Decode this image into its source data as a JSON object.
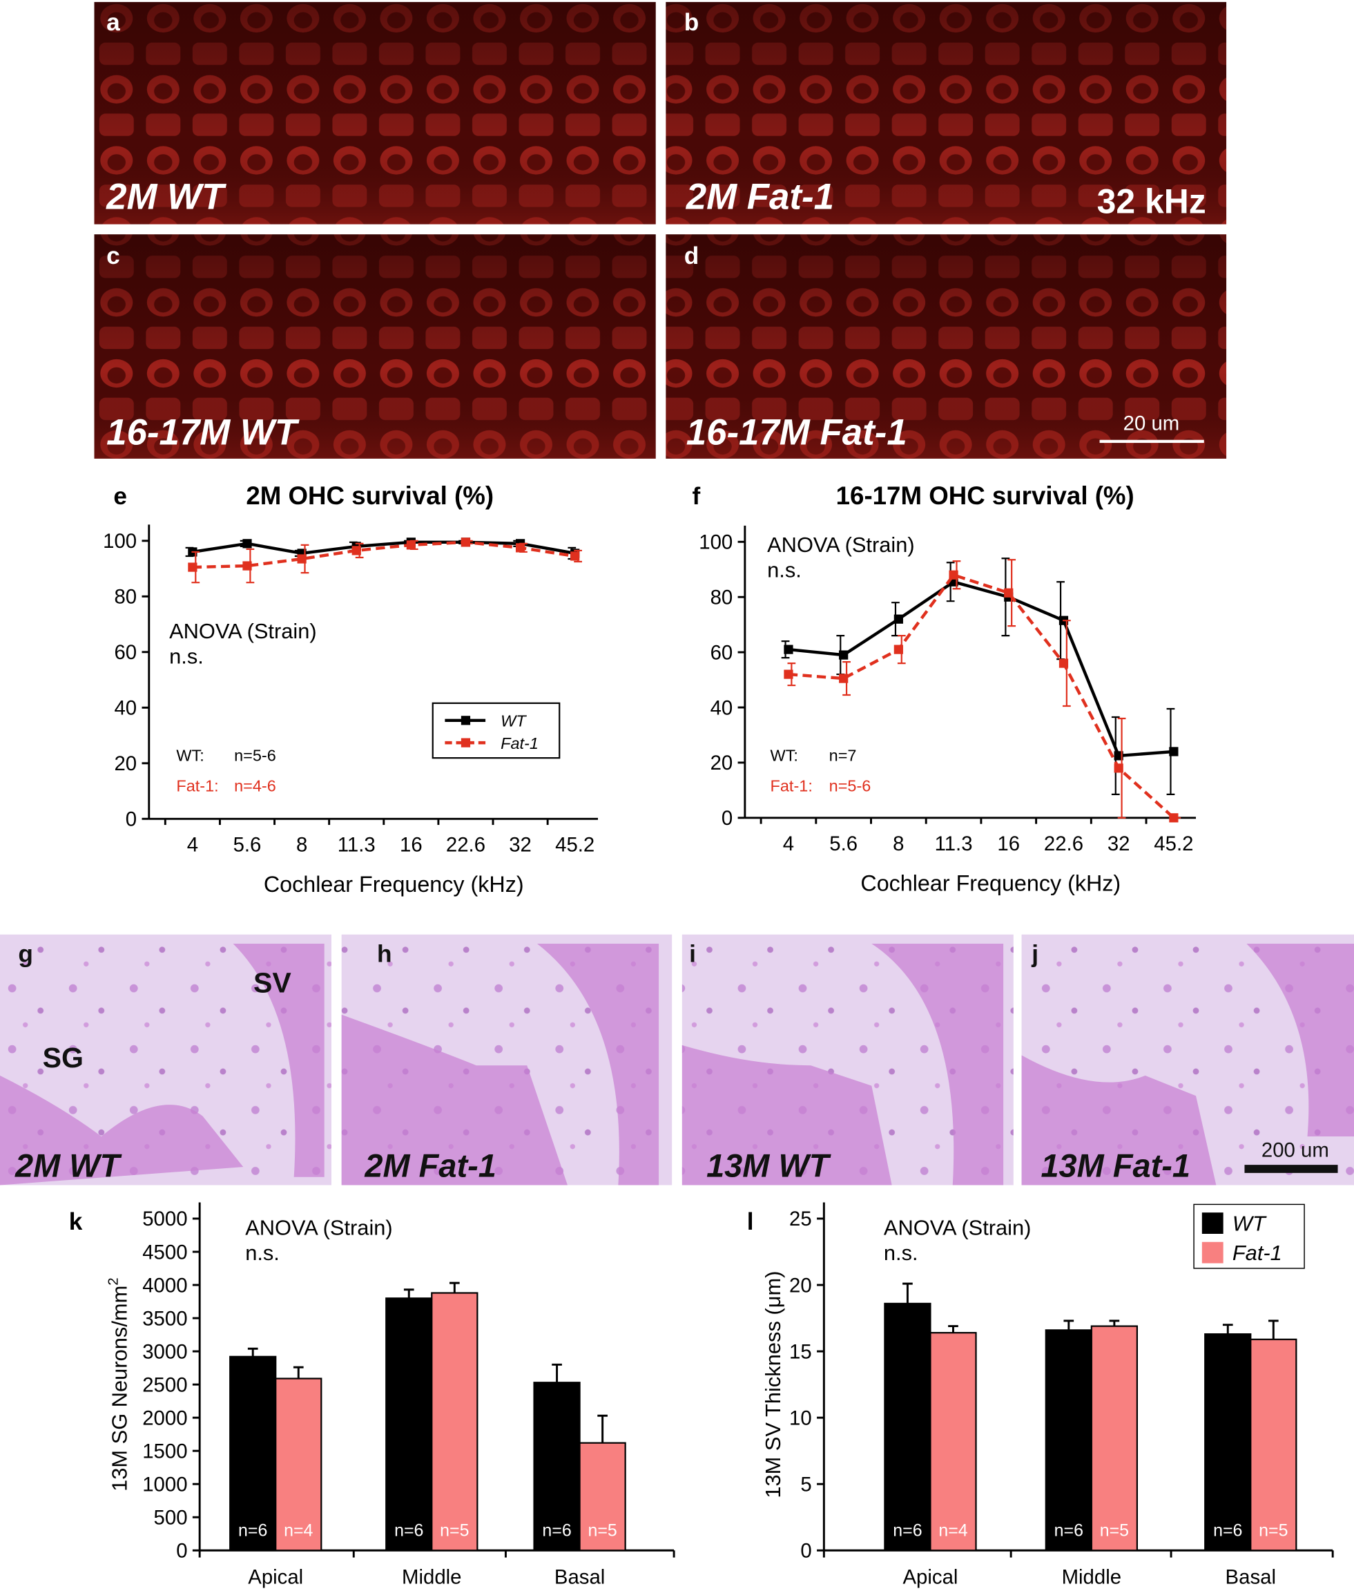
{
  "images": [
    {
      "letter": "a",
      "label": "2M WT"
    },
    {
      "letter": "b",
      "label": "2M Fat-1",
      "annotation": "32 kHz"
    },
    {
      "letter": "c",
      "label": "16-17M WT"
    },
    {
      "letter": "d",
      "label": "16-17M Fat-1",
      "scale_bar": "20 um"
    },
    {
      "letter": "g",
      "label": "2M WT",
      "annotations": [
        "SG",
        "SV"
      ]
    },
    {
      "letter": "h",
      "label": "2M Fat-1"
    },
    {
      "letter": "i",
      "label": "13M WT"
    },
    {
      "letter": "j",
      "label": "13M Fat-1",
      "scale_bar": "200 um"
    }
  ],
  "chart_data": [
    {
      "type": "line",
      "panel_letter": "e",
      "title": "2M OHC survival (%)",
      "x_label": "Cochlear Frequency (kHz)",
      "categories": [
        "4",
        "5.6",
        "8",
        "11.3",
        "16",
        "22.6",
        "32",
        "45.2"
      ],
      "ylim": [
        0,
        100
      ],
      "yticks": [
        0,
        20,
        40,
        60,
        80,
        100
      ],
      "annotation": [
        "ANOVA (Strain)",
        "n.s."
      ],
      "n_counts": [
        {
          "label": "WT:",
          "n": "n=5-6"
        },
        {
          "label": "Fat-1:",
          "n": "n=4-6"
        }
      ],
      "legend": true,
      "series": [
        {
          "name": "WT",
          "color": "#000000",
          "dashed": false,
          "values": [
            96,
            99,
            95.5,
            98,
            99.5,
            99.5,
            99,
            95.5
          ],
          "errors": [
            1.5,
            1,
            1,
            1.5,
            0.5,
            0.5,
            1,
            2
          ]
        },
        {
          "name": "Fat-1",
          "color": "#e0301e",
          "dashed": true,
          "values": [
            90.5,
            91,
            93.5,
            96.5,
            98.5,
            99.5,
            97.5,
            94.5
          ],
          "errors": [
            5.5,
            6,
            5,
            2.5,
            1.5,
            0.5,
            1.5,
            2
          ]
        }
      ]
    },
    {
      "type": "line",
      "panel_letter": "f",
      "title": "16-17M OHC survival (%)",
      "x_label": "Cochlear Frequency (kHz)",
      "categories": [
        "4",
        "5.6",
        "8",
        "11.3",
        "16",
        "22.6",
        "32",
        "45.2"
      ],
      "ylim": [
        0,
        100
      ],
      "yticks": [
        0,
        20,
        40,
        60,
        80,
        100
      ],
      "annotation": [
        "ANOVA (Strain)",
        "n.s."
      ],
      "n_counts": [
        {
          "label": "WT:",
          "n": "n=7"
        },
        {
          "label": "Fat-1:",
          "n": "n=5-6"
        }
      ],
      "legend": false,
      "series": [
        {
          "name": "WT",
          "color": "#000000",
          "dashed": false,
          "values": [
            61,
            59,
            72,
            85.5,
            80,
            71.5,
            22.5,
            24
          ],
          "errors": [
            3,
            7,
            6,
            7,
            14,
            14,
            14,
            15.5
          ]
        },
        {
          "name": "Fat-1",
          "color": "#e0301e",
          "dashed": true,
          "values": [
            52,
            50.5,
            61,
            88,
            81.5,
            56,
            18,
            0
          ],
          "errors": [
            4,
            6,
            5,
            5,
            12,
            15.5,
            18,
            0
          ]
        }
      ]
    },
    {
      "type": "bar",
      "panel_letter": "k",
      "y_label": "13M SG Neurons/mm",
      "y_label_sup": "2",
      "categories": [
        "Apical",
        "Middle",
        "Basal"
      ],
      "ylim": [
        0,
        5000
      ],
      "yticks": [
        0,
        500,
        1000,
        1500,
        2000,
        2500,
        3000,
        3500,
        4000,
        4500,
        5000
      ],
      "annotation": [
        "ANOVA (Strain)",
        "n.s."
      ],
      "legend": false,
      "series": [
        {
          "name": "WT",
          "color": "#000000",
          "values": [
            2920,
            3800,
            2530
          ],
          "errors": [
            120,
            130,
            270
          ],
          "n_labels": [
            "n=6",
            "n=6",
            "n=6"
          ]
        },
        {
          "name": "Fat-1",
          "color": "#f88080",
          "values": [
            2590,
            3880,
            1620
          ],
          "errors": [
            170,
            150,
            410
          ],
          "n_labels": [
            "n=4",
            "n=5",
            "n=5"
          ]
        }
      ]
    },
    {
      "type": "bar",
      "panel_letter": "l",
      "y_label": "13M SV Thickness (μm)",
      "categories": [
        "Apical",
        "Middle",
        "Basal"
      ],
      "ylim": [
        0,
        25
      ],
      "yticks": [
        0,
        5,
        10,
        15,
        20,
        25
      ],
      "annotation": [
        "ANOVA (Strain)",
        "n.s."
      ],
      "legend": true,
      "series": [
        {
          "name": "WT",
          "color": "#000000",
          "values": [
            18.6,
            16.6,
            16.3
          ],
          "errors": [
            1.5,
            0.7,
            0.7
          ],
          "n_labels": [
            "n=6",
            "n=6",
            "n=6"
          ]
        },
        {
          "name": "Fat-1",
          "color": "#f88080",
          "values": [
            16.4,
            16.9,
            15.9
          ],
          "errors": [
            0.5,
            0.4,
            1.4
          ],
          "n_labels": [
            "n=4",
            "n=5",
            "n=5"
          ]
        }
      ]
    }
  ]
}
